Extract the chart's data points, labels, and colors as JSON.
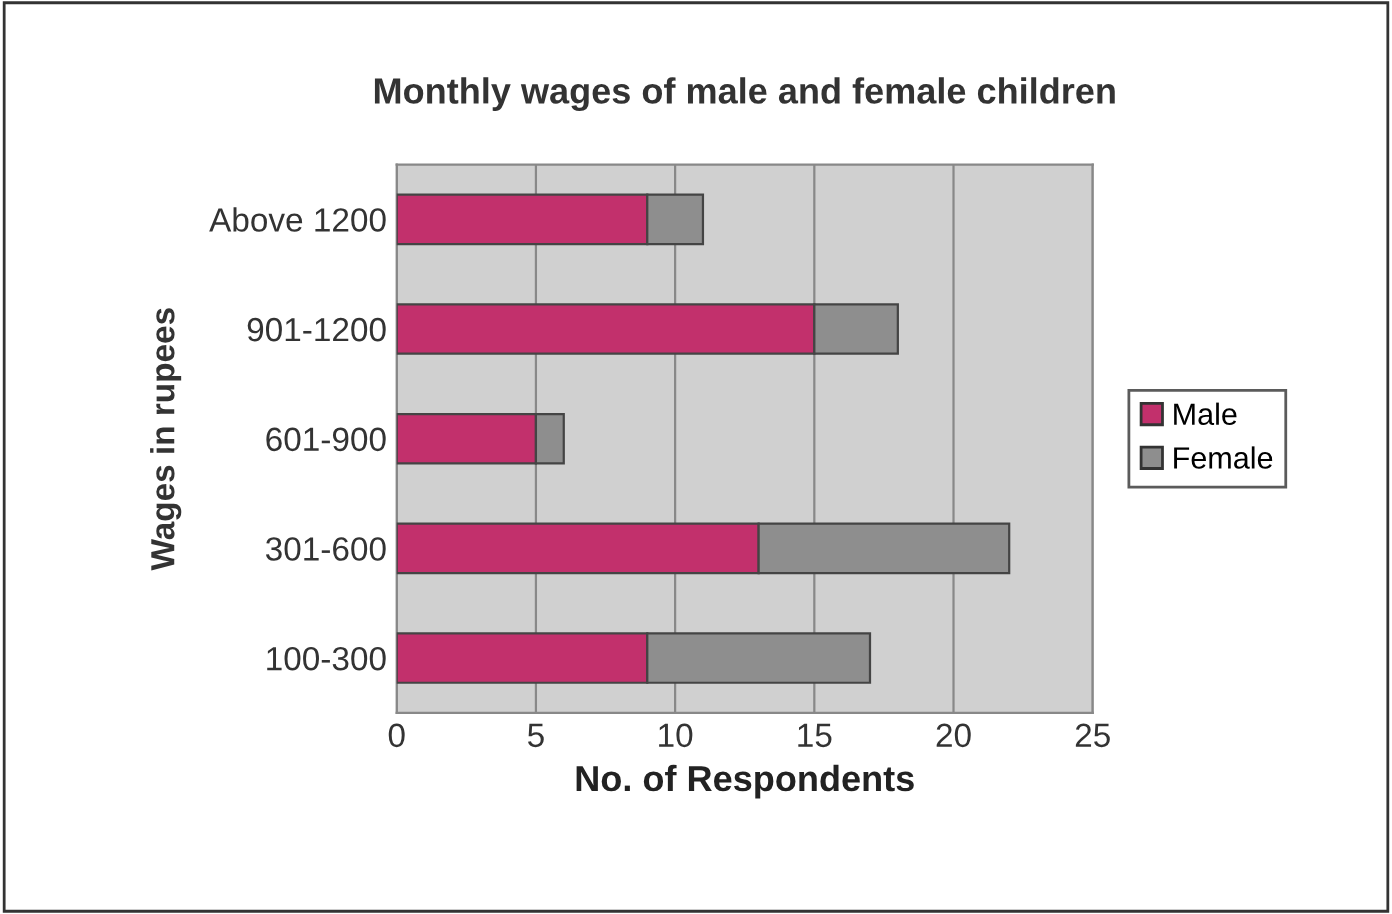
{
  "chart_data": {
    "type": "bar",
    "orientation": "horizontal",
    "stacked": true,
    "title": "Monthly wages of male and female children",
    "xlabel": "No. of Respondents",
    "ylabel": "Wages in rupees",
    "categories": [
      "Above 1200",
      "901-1200",
      "601-900",
      "301-600",
      "100-300"
    ],
    "series": [
      {
        "name": "Male",
        "color": "#c2306c",
        "values": [
          9,
          15,
          5,
          13,
          9
        ]
      },
      {
        "name": "Female",
        "color": "#8e8e8e",
        "values": [
          2,
          3,
          1,
          9,
          8
        ]
      }
    ],
    "xlim": [
      0,
      25
    ],
    "xticks": [
      0,
      5,
      10,
      15,
      20,
      25
    ],
    "grid": "x",
    "legend": "right"
  }
}
